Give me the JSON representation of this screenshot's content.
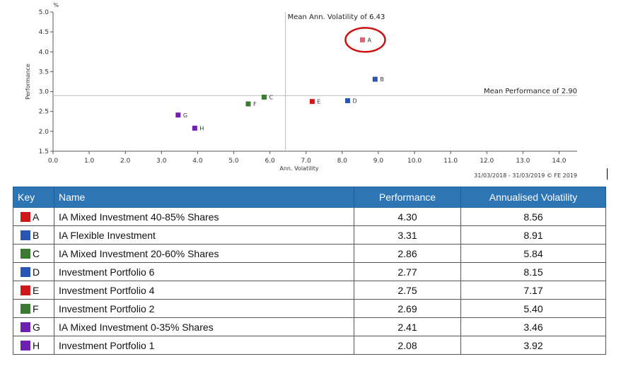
{
  "chart_data": {
    "type": "scatter",
    "xlabel": "Ann. Volatility",
    "ylabel": "Performance",
    "yunit": "%",
    "xlim": [
      0,
      14.5
    ],
    "ylim": [
      1.5,
      5.0
    ],
    "xticks": [
      "0.0",
      "1.0",
      "2.0",
      "3.0",
      "4.0",
      "5.0",
      "6.0",
      "7.0",
      "8.0",
      "9.0",
      "10.0",
      "11.0",
      "12.0",
      "13.0",
      "14.0"
    ],
    "yticks": [
      "1.5",
      "2.0",
      "2.5",
      "3.0",
      "3.5",
      "4.0",
      "4.5",
      "5.0"
    ],
    "grid": false,
    "mean_volatility": {
      "value": 6.43,
      "label": "Mean Ann. Volatility of 6.43"
    },
    "mean_performance": {
      "value": 2.9,
      "label": "Mean Performance of 2.90"
    },
    "date_range": "31/03/2018 - 31/03/2019 © FE 2019",
    "highlight": "A",
    "points": [
      {
        "key": "A",
        "x": 8.56,
        "y": 4.3,
        "color": "#e06070"
      },
      {
        "key": "B",
        "x": 8.91,
        "y": 3.31,
        "color": "#2a55b5"
      },
      {
        "key": "C",
        "x": 5.84,
        "y": 2.86,
        "color": "#3a7a30"
      },
      {
        "key": "D",
        "x": 8.15,
        "y": 2.77,
        "color": "#2a55b5"
      },
      {
        "key": "E",
        "x": 7.17,
        "y": 2.75,
        "color": "#d01818"
      },
      {
        "key": "F",
        "x": 5.4,
        "y": 2.69,
        "color": "#3a7a30"
      },
      {
        "key": "G",
        "x": 3.46,
        "y": 2.41,
        "color": "#7020b0"
      },
      {
        "key": "H",
        "x": 3.92,
        "y": 2.08,
        "color": "#7020b0"
      }
    ]
  },
  "table": {
    "headers": {
      "key": "Key",
      "name": "Name",
      "performance": "Performance",
      "volatility": "Annualised Volatility"
    },
    "rows": [
      {
        "key": "A",
        "color": "#d01818",
        "name": "IA Mixed Investment 40-85% Shares",
        "performance": "4.30",
        "volatility": "8.56"
      },
      {
        "key": "B",
        "color": "#2a55b5",
        "name": "IA Flexible Investment",
        "performance": "3.31",
        "volatility": "8.91"
      },
      {
        "key": "C",
        "color": "#3a7a30",
        "name": "IA Mixed Investment 20-60% Shares",
        "performance": "2.86",
        "volatility": "5.84"
      },
      {
        "key": "D",
        "color": "#2a55b5",
        "name": "Investment Portfolio 6",
        "performance": "2.77",
        "volatility": "8.15"
      },
      {
        "key": "E",
        "color": "#d01818",
        "name": "Investment Portfolio 4",
        "performance": "2.75",
        "volatility": "7.17"
      },
      {
        "key": "F",
        "color": "#3a7a30",
        "name": "Investment Portfolio 2",
        "performance": "2.69",
        "volatility": "5.40"
      },
      {
        "key": "G",
        "color": "#7020b0",
        "name": "IA Mixed Investment 0-35% Shares",
        "performance": "2.41",
        "volatility": "3.46"
      },
      {
        "key": "H",
        "color": "#7020b0",
        "name": "Investment Portfolio 1",
        "performance": "2.08",
        "volatility": "3.92"
      }
    ]
  }
}
